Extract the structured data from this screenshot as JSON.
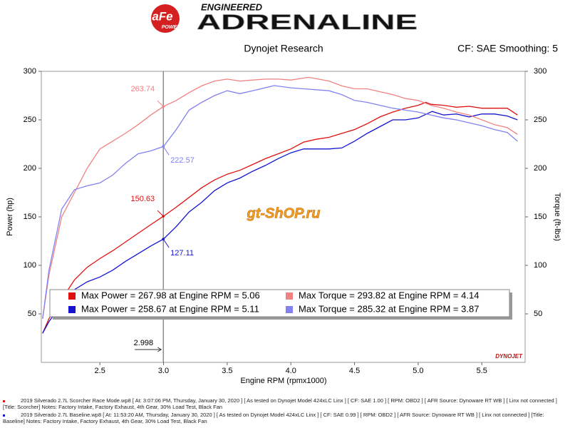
{
  "chart_data": {
    "type": "line",
    "logo": "aFe",
    "logo_sub": "POWER",
    "brand_top": "ENGINEERED",
    "brand": "ADRENALINE",
    "title": "Dynojet Research",
    "subtitle": "CF: SAE Smoothing: 5",
    "xlabel": "Engine RPM (rpmx1000)",
    "ylabel": "Power (hp)",
    "y2label": "Torque (ft-lbs)",
    "watermark": "gt-ShOP.ru",
    "corner_logo": "DYNOJET",
    "xlim": [
      2.04,
      5.84
    ],
    "xticks": [
      2.5,
      {
        "value": 3,
        "label": "3.0"
      },
      3.5,
      {
        "value": 4,
        "label": "4.0"
      },
      4.5,
      {
        "value": 5,
        "label": "5.0"
      },
      5.5
    ],
    "ylim": [
      0,
      300
    ],
    "yticks": [
      50,
      100,
      150,
      200,
      250,
      300
    ],
    "y2lim": [
      0,
      300
    ],
    "y2ticks": [
      50,
      100,
      150,
      200,
      250,
      300
    ],
    "grid": false,
    "cursor": {
      "x": 2.998,
      "labels": [
        263.74,
        222.57,
        150.63,
        127.11
      ],
      "series": [
        2,
        3,
        0,
        1
      ]
    },
    "series": [
      {
        "name": "Max Power = 267.98 at Engine RPM = 5.06",
        "color": "#e01010",
        "x": [
          2.05,
          2.1,
          2.2,
          2.3,
          2.4,
          2.5,
          2.6,
          2.7,
          2.8,
          2.9,
          3.0,
          3.1,
          3.2,
          3.3,
          3.4,
          3.5,
          3.6,
          3.7,
          3.8,
          3.9,
          4.0,
          4.1,
          4.2,
          4.3,
          4.4,
          4.5,
          4.6,
          4.7,
          4.8,
          4.9,
          5.0,
          5.06,
          5.1,
          5.2,
          5.3,
          5.4,
          5.5,
          5.6,
          5.7,
          5.78
        ],
        "values": [
          30,
          45,
          65,
          85,
          98,
          107,
          115,
          124,
          133,
          142,
          150.63,
          160,
          170,
          180,
          188,
          194,
          198,
          204,
          210,
          215,
          220,
          227,
          230,
          232,
          236,
          240,
          246,
          253,
          258,
          262,
          265,
          267.98,
          266,
          265,
          263,
          264,
          262,
          262,
          262,
          255
        ]
      },
      {
        "name": "Max Power = 258.67 at Engine RPM = 5.11",
        "color": "#1414d0",
        "x": [
          2.05,
          2.1,
          2.2,
          2.3,
          2.4,
          2.5,
          2.6,
          2.7,
          2.8,
          2.9,
          3.0,
          3.1,
          3.2,
          3.3,
          3.4,
          3.5,
          3.6,
          3.7,
          3.8,
          3.9,
          4.0,
          4.1,
          4.2,
          4.3,
          4.4,
          4.5,
          4.6,
          4.7,
          4.8,
          4.9,
          5.0,
          5.11,
          5.2,
          5.3,
          5.4,
          5.5,
          5.6,
          5.7,
          5.78
        ],
        "values": [
          30,
          42,
          60,
          75,
          83,
          88,
          95,
          104,
          112,
          120,
          127.11,
          140,
          155,
          165,
          177,
          185,
          190,
          197,
          203,
          210,
          216,
          220,
          220,
          220,
          221,
          228,
          236,
          243,
          250,
          250,
          252,
          258.67,
          255,
          256,
          253,
          256,
          256,
          254,
          250
        ]
      },
      {
        "name": "Max Torque = 293.82 at Engine RPM = 4.14",
        "color": "#f08282",
        "axis": "y2",
        "x": [
          2.05,
          2.1,
          2.2,
          2.3,
          2.4,
          2.5,
          2.6,
          2.7,
          2.8,
          2.9,
          3.0,
          3.1,
          3.2,
          3.3,
          3.4,
          3.5,
          3.6,
          3.7,
          3.8,
          3.9,
          4.0,
          4.14,
          4.3,
          4.4,
          4.5,
          4.6,
          4.7,
          4.8,
          4.9,
          5.0,
          5.1,
          5.2,
          5.3,
          5.4,
          5.5,
          5.6,
          5.7,
          5.78
        ],
        "values": [
          45,
          90,
          150,
          175,
          200,
          220,
          228,
          236,
          245,
          255,
          263.74,
          270,
          278,
          285,
          290,
          292,
          290,
          291,
          292,
          292,
          291,
          293.82,
          290,
          285,
          282,
          282,
          279,
          276,
          272,
          270,
          265,
          262,
          258,
          255,
          250,
          245,
          242,
          235
        ]
      },
      {
        "name": "Max Torque = 285.32 at Engine RPM = 3.87",
        "color": "#8282f0",
        "axis": "y2",
        "x": [
          2.05,
          2.1,
          2.2,
          2.3,
          2.4,
          2.5,
          2.6,
          2.7,
          2.8,
          2.9,
          3.0,
          3.1,
          3.2,
          3.3,
          3.4,
          3.5,
          3.6,
          3.7,
          3.87,
          4.0,
          4.1,
          4.2,
          4.3,
          4.4,
          4.5,
          4.6,
          4.7,
          4.8,
          4.9,
          5.0,
          5.1,
          5.2,
          5.3,
          5.4,
          5.5,
          5.6,
          5.7,
          5.78
        ],
        "values": [
          45,
          95,
          158,
          178,
          182,
          185,
          193,
          205,
          215,
          218,
          222.57,
          240,
          260,
          268,
          275,
          280,
          277,
          280,
          285.32,
          283,
          282,
          281,
          280,
          276,
          270,
          268,
          265,
          262,
          260,
          258,
          255,
          252,
          250,
          247,
          244,
          240,
          237,
          228
        ]
      }
    ],
    "footer": [
      "2019 Silverado 2.7L Scorcher Race Mode.wp8 [ At: 3:07:06 PM, Thursday, January 30, 2020 ] [ As tested on Dynojet Model 424xLC Linx ] [ CF: SAE 1.00 ] [ RPM: OBD2 ] [ AFR Source: Dynoware RT WB ] [ Linx not connected ] [Title: Scorcher]  Notes: Factory Intake, Factory Exhaust, 4th Gear, 30% Load Test, Black Fan",
      "2019 Silverado 2.7L Baseline.wp8 [ At: 11:53:20 AM, Thursday, January 30, 2020 ] [ As tested on Dynojet Model 424xLC Linx ] [ CF: SAE 0.99 ] [ RPM: OBD2 ] [ AFR Source: Dynoware RT WB ] [ Linx not connected ] [Title: Baseline]  Notes: Factory Intake, Factory Exhaust, 4th Gear, 30% Load Test, Black Fan"
    ]
  }
}
